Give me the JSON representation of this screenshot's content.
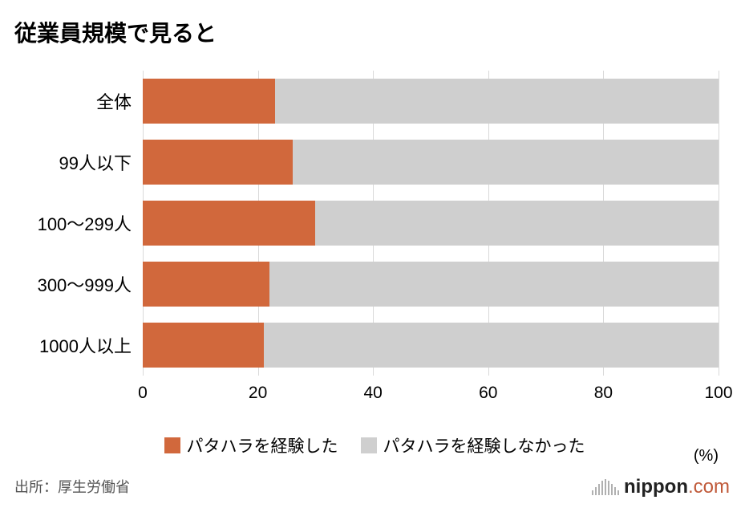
{
  "title": "従業員規模で見ると",
  "chart": {
    "type": "stacked-bar-horizontal",
    "xlim": [
      0,
      100
    ],
    "xticks": [
      0,
      20,
      40,
      60,
      80,
      100
    ],
    "axis_unit_label": "(%)",
    "grid_color": "#d9d9d9",
    "background_color": "#ffffff",
    "tick_fontsize": 21,
    "category_fontsize": 22,
    "bar_height_pct": 74,
    "row_gap_pct": 26,
    "categories": [
      "全体",
      "99人以下",
      "100～299人",
      "300～999人",
      "1000人以上"
    ],
    "series": [
      {
        "name": "パタハラを経験した",
        "color": "#d1683c",
        "values": [
          23,
          26,
          30,
          22,
          21
        ]
      },
      {
        "name": "パタハラを経験しなかった",
        "color": "#cfcfcf",
        "values": [
          77,
          74,
          70,
          78,
          79
        ]
      }
    ]
  },
  "legend": {
    "items": [
      {
        "label": "パタハラを経験した",
        "color": "#d1683c"
      },
      {
        "label": "パタハラを経験しなかった",
        "color": "#cfcfcf"
      }
    ],
    "fontsize": 21
  },
  "source": "出所：厚生労働省",
  "logo": {
    "bold": "nippon",
    "suffix": ".com"
  }
}
